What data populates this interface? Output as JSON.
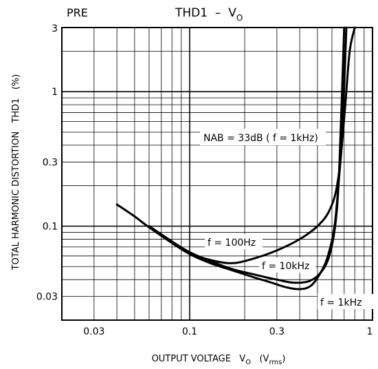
{
  "header": {
    "left_label": "PRE",
    "title_main": "THD1  –  V",
    "title_sub": "O"
  },
  "chart_data": {
    "type": "line",
    "title": "THD1 – VO",
    "xlabel": {
      "prefix": "OUTPUT VOLTAGE   V",
      "prefix_sub": "O",
      "unit_open": "   (V",
      "unit_sub": "rms",
      "unit_close": ")"
    },
    "ylabel": "TOTAL HARMONIC DISTORTION   THD1   (%)",
    "x_scale": "log",
    "y_scale": "log",
    "xlim": [
      0.02,
      1
    ],
    "ylim": [
      0.02,
      3
    ],
    "x_ticks": [
      {
        "value": 0.03,
        "label": "0.03"
      },
      {
        "value": 0.1,
        "label": "0.1"
      },
      {
        "value": 0.3,
        "label": "0.3"
      },
      {
        "value": 1,
        "label": "1"
      }
    ],
    "y_ticks": [
      {
        "value": 0.03,
        "label": "0.03"
      },
      {
        "value": 0.1,
        "label": "0.1"
      },
      {
        "value": 0.3,
        "label": "0.3"
      },
      {
        "value": 1,
        "label": "1"
      },
      {
        "value": 3,
        "label": "3"
      }
    ],
    "grid": true,
    "annotations": {
      "nab": "NAB = 33dB ( f = 1kHz)"
    },
    "series": [
      {
        "name": "f = 100Hz",
        "x": [
          0.04,
          0.05,
          0.06,
          0.08,
          0.1,
          0.13,
          0.17,
          0.22,
          0.3,
          0.4,
          0.5,
          0.58,
          0.64,
          0.68,
          0.72
        ],
        "y": [
          0.145,
          0.118,
          0.098,
          0.075,
          0.063,
          0.056,
          0.053,
          0.057,
          0.066,
          0.08,
          0.1,
          0.13,
          0.2,
          0.45,
          3.0
        ]
      },
      {
        "name": "f = 10kHz",
        "x": [
          0.06,
          0.08,
          0.1,
          0.13,
          0.17,
          0.22,
          0.3,
          0.37,
          0.45,
          0.52,
          0.58,
          0.63,
          0.66,
          0.7
        ],
        "y": [
          0.1,
          0.077,
          0.064,
          0.055,
          0.048,
          0.044,
          0.04,
          0.038,
          0.039,
          0.045,
          0.06,
          0.11,
          0.3,
          3.0
        ]
      },
      {
        "name": "f = 1kHz",
        "x": [
          0.06,
          0.08,
          0.1,
          0.13,
          0.17,
          0.22,
          0.28,
          0.34,
          0.4,
          0.46,
          0.52,
          0.57,
          0.62,
          0.66,
          0.71,
          0.75,
          0.8
        ],
        "y": [
          0.1,
          0.075,
          0.062,
          0.053,
          0.047,
          0.042,
          0.038,
          0.035,
          0.034,
          0.036,
          0.045,
          0.06,
          0.1,
          0.25,
          0.8,
          2.0,
          3.0
        ]
      }
    ],
    "series_labels": [
      "f = 100Hz",
      "f = 10kHz",
      "f = 1kHz"
    ]
  }
}
